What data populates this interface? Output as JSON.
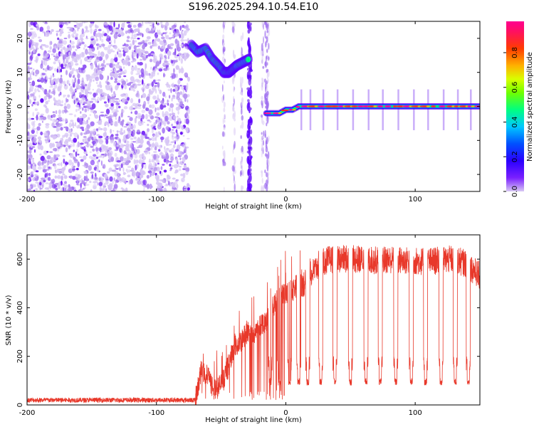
{
  "title": "S196.2025.294.10.54.E10",
  "chart_data": [
    {
      "type": "heatmap",
      "name": "spectrogram",
      "xlabel": "Height of straight line (km)",
      "ylabel": "Frequency (Hz)",
      "xlim": [
        -200,
        150
      ],
      "ylim": [
        -25,
        25
      ],
      "xticks": [
        -200,
        -100,
        0,
        100
      ],
      "yticks": [
        -20,
        -10,
        0,
        10,
        20
      ],
      "colorbar": {
        "label": "Normalized spectral amplitude",
        "range": [
          0,
          1
        ],
        "ticks": [
          "0.0",
          "0.2",
          "0.4",
          "0.6",
          "0.8"
        ],
        "colors": [
          "#c8b4f0",
          "#5a00ff",
          "#0000ff",
          "#00d2ff",
          "#00ff64",
          "#b4ff00",
          "#ffaa00",
          "#ff2828",
          "#ff0096"
        ]
      },
      "regions": [
        {
          "label": "noise",
          "x_range": [
            -200,
            -75
          ],
          "freq_range": [
            -25,
            25
          ],
          "level": 0.05
        },
        {
          "label": "descending track",
          "points": [
            [
              -73,
              18
            ],
            [
              -68,
              16
            ],
            [
              -62,
              17
            ],
            [
              -57,
              14
            ],
            [
              -52,
              12
            ],
            [
              -48,
              10
            ],
            [
              -44,
              10
            ],
            [
              -41,
              11
            ],
            [
              -38,
              12
            ],
            [
              -33,
              13
            ],
            [
              -28,
              14
            ]
          ],
          "level": 0.35
        },
        {
          "label": "vertical streak",
          "x": -28,
          "freq_range": [
            -25,
            25
          ],
          "level": 0.1
        },
        {
          "label": "doppler line",
          "points": [
            [
              -15,
              -2
            ],
            [
              -5,
              -2
            ],
            [
              0,
              -1
            ],
            [
              5,
              -1
            ],
            [
              10,
              0
            ],
            [
              150,
              0
            ]
          ],
          "level": 0.9
        }
      ],
      "fade_columns": [
        -48,
        -40,
        -34,
        -18,
        -14
      ]
    },
    {
      "type": "line",
      "name": "snr",
      "xlabel": "Height of straight line (km)",
      "ylabel": "SNR (10 * v/v)",
      "xlim": [
        -200,
        150
      ],
      "ylim": [
        0,
        700
      ],
      "xticks": [
        -200,
        -100,
        0,
        100
      ],
      "yticks": [
        0,
        200,
        400,
        600
      ],
      "color": "#e8382a",
      "series": [
        {
          "name": "SNR",
          "envelope": [
            [
              -200,
              20
            ],
            [
              -70,
              22
            ],
            [
              -65,
              150
            ],
            [
              -60,
              110
            ],
            [
              -55,
              60
            ],
            [
              -50,
              85
            ],
            [
              -45,
              150
            ],
            [
              -40,
              240
            ],
            [
              -35,
              250
            ],
            [
              -30,
              300
            ],
            [
              -25,
              275
            ],
            [
              -20,
              330
            ],
            [
              -15,
              350
            ],
            [
              -10,
              400
            ],
            [
              -5,
              445
            ],
            [
              0,
              455
            ],
            [
              5,
              470
            ],
            [
              10,
              505
            ],
            [
              15,
              500
            ],
            [
              20,
              540
            ],
            [
              25,
              575
            ],
            [
              30,
              590
            ],
            [
              35,
              600
            ],
            [
              40,
              600
            ],
            [
              50,
              600
            ],
            [
              60,
              598
            ],
            [
              70,
              595
            ],
            [
              80,
              598
            ],
            [
              90,
              595
            ],
            [
              100,
              592
            ],
            [
              110,
              590
            ],
            [
              120,
              595
            ],
            [
              130,
              600
            ],
            [
              140,
              580
            ],
            [
              150,
              530
            ]
          ],
          "dips": [
            -12,
            -5,
            3,
            10,
            17,
            27,
            38,
            50,
            62,
            73,
            85,
            97,
            108,
            120,
            131,
            141
          ],
          "noise_amplitude": 18
        }
      ]
    }
  ]
}
